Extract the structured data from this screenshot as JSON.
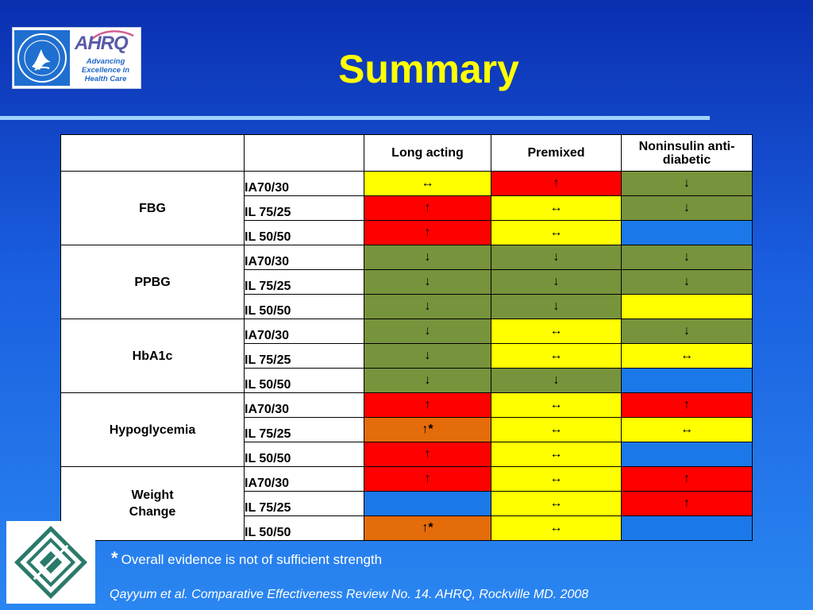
{
  "logos": {
    "ahrq_mark": "AHRQ",
    "ahrq_tagline": [
      "Advancing",
      "Excellence in",
      "Health Care"
    ],
    "hhs_seal": "hhs-eagle-seal",
    "epc_logo": "EVIDENCE-BASED PRACTICE CENTERS"
  },
  "title": "Summary",
  "table": {
    "columns": [
      "",
      "",
      "Long acting",
      "Premixed",
      "Noninsulin anti-diabetic"
    ],
    "groups": [
      {
        "outcome": "FBG",
        "rows": [
          {
            "dose": "IA70/30",
            "cells": [
              {
                "glyph": "↔",
                "color": "yellow"
              },
              {
                "glyph": "↑",
                "color": "red"
              },
              {
                "glyph": "↓",
                "color": "green"
              }
            ]
          },
          {
            "dose": "IL 75/25",
            "cells": [
              {
                "glyph": "↑",
                "color": "red"
              },
              {
                "glyph": "↔",
                "color": "yellow"
              },
              {
                "glyph": "↓",
                "color": "green"
              }
            ]
          },
          {
            "dose": "IL 50/50",
            "cells": [
              {
                "glyph": "↑",
                "color": "red"
              },
              {
                "glyph": "↔",
                "color": "yellow"
              },
              {
                "glyph": "",
                "color": "blue"
              }
            ]
          }
        ]
      },
      {
        "outcome": "PPBG",
        "rows": [
          {
            "dose": "IA70/30",
            "cells": [
              {
                "glyph": "↓",
                "color": "green"
              },
              {
                "glyph": "↓",
                "color": "green"
              },
              {
                "glyph": "↓",
                "color": "green"
              }
            ]
          },
          {
            "dose": "IL 75/25",
            "cells": [
              {
                "glyph": "↓",
                "color": "green"
              },
              {
                "glyph": "↓",
                "color": "green"
              },
              {
                "glyph": "↓",
                "color": "green"
              }
            ]
          },
          {
            "dose": "IL 50/50",
            "cells": [
              {
                "glyph": "↓",
                "color": "green"
              },
              {
                "glyph": "↓",
                "color": "green"
              },
              {
                "glyph": "",
                "color": "yellow"
              }
            ]
          }
        ]
      },
      {
        "outcome": "HbA1c",
        "rows": [
          {
            "dose": "IA70/30",
            "cells": [
              {
                "glyph": "↓",
                "color": "green"
              },
              {
                "glyph": "↔",
                "color": "yellow"
              },
              {
                "glyph": "↓",
                "color": "green"
              }
            ]
          },
          {
            "dose": "IL 75/25",
            "cells": [
              {
                "glyph": "↓",
                "color": "green"
              },
              {
                "glyph": "↔",
                "color": "yellow"
              },
              {
                "glyph": "↔",
                "color": "yellow"
              }
            ]
          },
          {
            "dose": "IL 50/50",
            "cells": [
              {
                "glyph": "↓",
                "color": "green"
              },
              {
                "glyph": "↓",
                "color": "green"
              },
              {
                "glyph": "",
                "color": "blue"
              }
            ]
          }
        ]
      },
      {
        "outcome": "Hypoglycemia",
        "rows": [
          {
            "dose": "IA70/30",
            "cells": [
              {
                "glyph": "↑",
                "color": "red"
              },
              {
                "glyph": "↔",
                "color": "yellow"
              },
              {
                "glyph": "↑",
                "color": "red"
              }
            ]
          },
          {
            "dose": "IL 75/25",
            "cells": [
              {
                "glyph": "↑*",
                "color": "orange"
              },
              {
                "glyph": "↔",
                "color": "yellow"
              },
              {
                "glyph": "↔",
                "color": "yellow"
              }
            ]
          },
          {
            "dose": "IL 50/50",
            "cells": [
              {
                "glyph": "↑",
                "color": "red"
              },
              {
                "glyph": "↔",
                "color": "yellow"
              },
              {
                "glyph": "",
                "color": "blue"
              }
            ]
          }
        ]
      },
      {
        "outcome": "Weight Change",
        "outcome_lines": [
          "Weight",
          "Change"
        ],
        "rows": [
          {
            "dose": "IA70/30",
            "cells": [
              {
                "glyph": "↑",
                "color": "red"
              },
              {
                "glyph": "↔",
                "color": "yellow"
              },
              {
                "glyph": "↑",
                "color": "red"
              }
            ]
          },
          {
            "dose": "IL 75/25",
            "cells": [
              {
                "glyph": "",
                "color": "blue"
              },
              {
                "glyph": "↔",
                "color": "yellow"
              },
              {
                "glyph": "↑",
                "color": "red"
              }
            ]
          },
          {
            "dose": "IL 50/50",
            "cells": [
              {
                "glyph": "↑*",
                "color": "orange"
              },
              {
                "glyph": "↔",
                "color": "yellow"
              },
              {
                "glyph": "",
                "color": "blue"
              }
            ]
          }
        ]
      }
    ]
  },
  "footnote": {
    "marker": "*",
    "text": "Overall evidence is not of sufficient strength"
  },
  "citation": "Qayyum et al. Comparative Effectiveness Review No. 14. AHRQ, Rockville MD. 2008",
  "colors": {
    "yellow": "#ffff00",
    "red": "#ff0000",
    "green": "#77933c",
    "orange": "#e46c0a",
    "blue": "#1b78e8",
    "title": "#ffff00"
  }
}
